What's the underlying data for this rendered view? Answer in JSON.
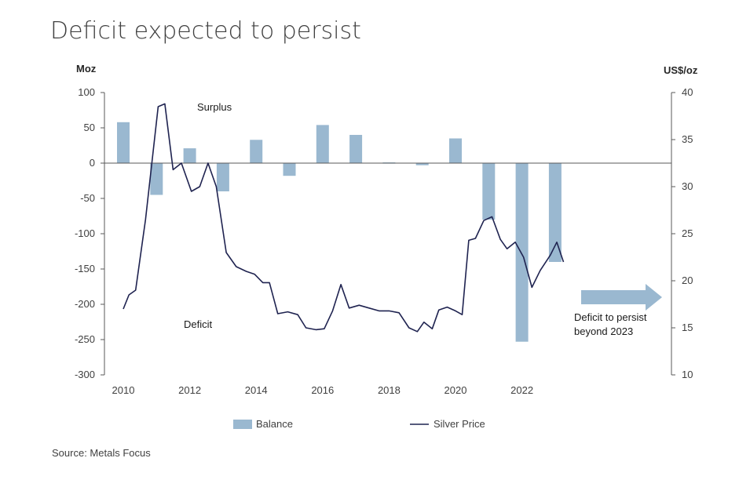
{
  "title": "Deficit expected to persist",
  "source": "Source: Metals Focus",
  "chart_data": {
    "type": "bar+line",
    "left_axis": {
      "label": "Moz",
      "ticks": [
        100,
        50,
        0,
        -50,
        -100,
        -150,
        -200,
        -250,
        -300
      ],
      "ylim": [
        -300,
        100
      ]
    },
    "right_axis": {
      "label": "US$/oz",
      "ticks": [
        40,
        35,
        30,
        25,
        20,
        15,
        10
      ],
      "ylim": [
        10,
        40
      ]
    },
    "x_ticks": [
      "2010",
      "2012",
      "2014",
      "2016",
      "2018",
      "2020",
      "2022"
    ],
    "xlim": [
      2010,
      2023.8
    ],
    "grid": false,
    "legend_position": "bottom",
    "series": [
      {
        "name": "Balance",
        "kind": "bar",
        "axis": "left",
        "color": "#9ab8d0",
        "x": [
          2010,
          2011,
          2012,
          2013,
          2014,
          2015,
          2016,
          2017,
          2018,
          2019,
          2020,
          2021,
          2022,
          2023
        ],
        "values": [
          58,
          -45,
          21,
          -40,
          33,
          -18,
          54,
          40,
          1,
          -3,
          35,
          -80,
          -253,
          -140
        ]
      },
      {
        "name": "Silver Price",
        "kind": "line",
        "axis": "right",
        "color": "#1f2350",
        "x": [
          2010.0,
          2010.17,
          2010.37,
          2010.67,
          2011.05,
          2011.25,
          2011.5,
          2011.75,
          2012.05,
          2012.3,
          2012.55,
          2012.8,
          2013.1,
          2013.4,
          2013.7,
          2013.95,
          2014.2,
          2014.4,
          2014.65,
          2014.95,
          2015.25,
          2015.5,
          2015.8,
          2016.05,
          2016.3,
          2016.55,
          2016.8,
          2017.1,
          2017.4,
          2017.7,
          2018.0,
          2018.3,
          2018.6,
          2018.85,
          2019.05,
          2019.3,
          2019.5,
          2019.75,
          2020.0,
          2020.2,
          2020.4,
          2020.6,
          2020.85,
          2021.1,
          2021.35,
          2021.55,
          2021.8,
          2022.05,
          2022.3,
          2022.55,
          2022.85,
          2023.05,
          2023.25
        ],
        "values": [
          17.0,
          18.5,
          19.0,
          26.5,
          38.5,
          38.8,
          31.8,
          32.5,
          29.5,
          30.0,
          32.5,
          30.0,
          23.0,
          21.5,
          21.0,
          20.7,
          19.8,
          19.8,
          16.5,
          16.7,
          16.4,
          15.0,
          14.8,
          14.9,
          16.8,
          19.6,
          17.1,
          17.4,
          17.1,
          16.8,
          16.8,
          16.6,
          15.0,
          14.6,
          15.6,
          14.9,
          16.9,
          17.2,
          16.8,
          16.4,
          24.3,
          24.5,
          26.4,
          26.8,
          24.4,
          23.4,
          24.1,
          22.5,
          19.3,
          21.1,
          22.7,
          24.1,
          22.0
        ]
      }
    ],
    "annotations": {
      "surplus": "Surplus",
      "deficit": "Deficit",
      "arrow_text": [
        "Deficit to persist",
        "beyond 2023"
      ]
    }
  }
}
